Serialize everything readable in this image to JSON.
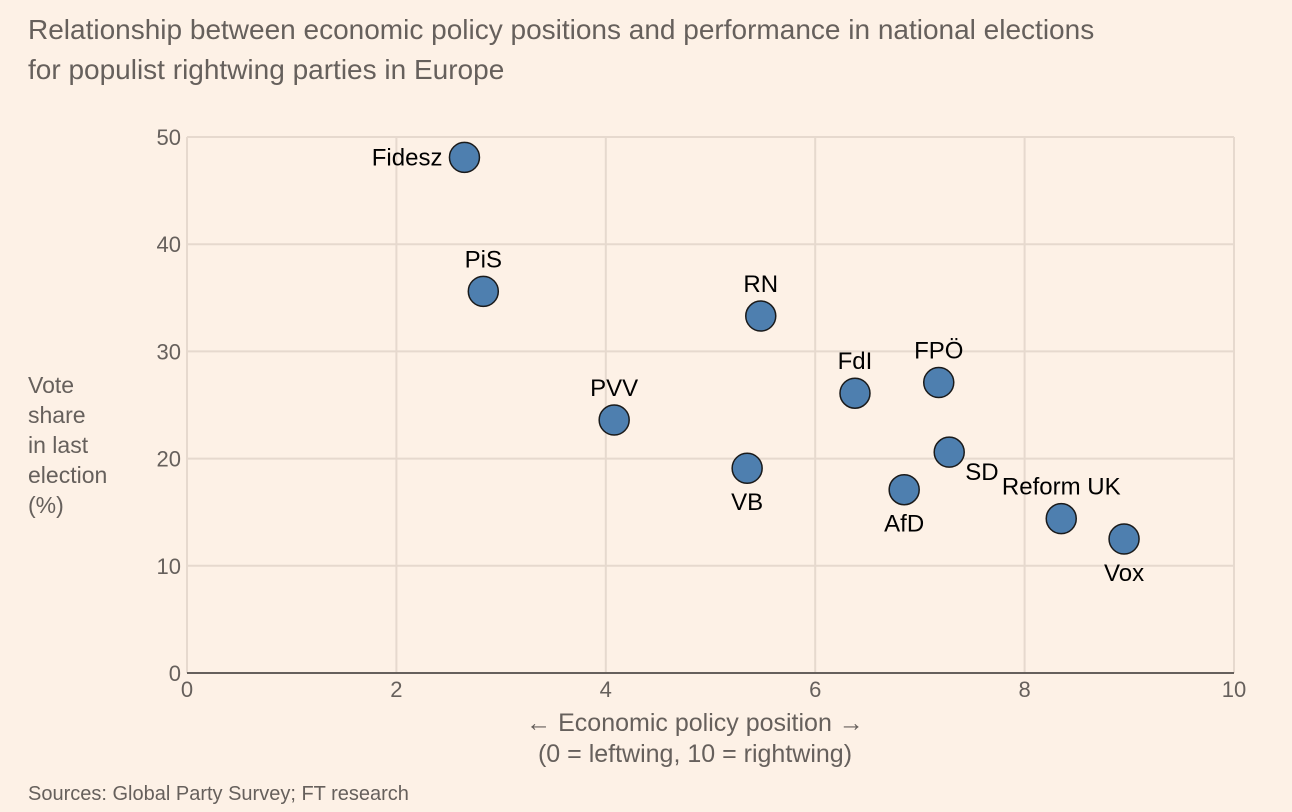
{
  "title_lines": [
    "Relationship between economic policy positions and performance in national elections",
    "for populist rightwing parties in Europe"
  ],
  "ylabel_lines": [
    "Vote",
    "share",
    "in last",
    "election",
    "(%)"
  ],
  "xlabel_lines": [
    "← Economic policy position →",
    "(0 = leftwing, 10 = rightwing)"
  ],
  "source": "Sources: Global Party Survey; FT research",
  "colors": {
    "background": "#FDF1E6",
    "point_fill": "#4E7FAF",
    "point_stroke": "#1A1A1A",
    "grid": "#E6D9CE",
    "axis": "#66605C",
    "text": "#66605C",
    "label": "#000000"
  },
  "chart_data": {
    "type": "scatter",
    "title": "Relationship between economic policy positions and performance in national elections for populist rightwing parties in Europe",
    "xlabel": "← Economic policy position → (0 = leftwing, 10 = rightwing)",
    "ylabel": "Vote share in last election (%)",
    "xlim": [
      0,
      10
    ],
    "ylim": [
      0,
      50
    ],
    "xticks": [
      0,
      2,
      4,
      6,
      8,
      10
    ],
    "yticks": [
      0,
      10,
      20,
      30,
      40,
      50
    ],
    "grid": true,
    "points": [
      {
        "label": "Fidesz",
        "x": 2.65,
        "y": 48.1,
        "label_pos": "left"
      },
      {
        "label": "PiS",
        "x": 2.83,
        "y": 35.6,
        "label_pos": "above"
      },
      {
        "label": "PVV",
        "x": 4.08,
        "y": 23.6,
        "label_pos": "above"
      },
      {
        "label": "VB",
        "x": 5.35,
        "y": 19.1,
        "label_pos": "below"
      },
      {
        "label": "RN",
        "x": 5.48,
        "y": 33.3,
        "label_pos": "above"
      },
      {
        "label": "FdI",
        "x": 6.38,
        "y": 26.1,
        "label_pos": "above"
      },
      {
        "label": "AfD",
        "x": 6.85,
        "y": 17.1,
        "label_pos": "below"
      },
      {
        "label": "FPÖ",
        "x": 7.18,
        "y": 27.1,
        "label_pos": "above"
      },
      {
        "label": "SD",
        "x": 7.28,
        "y": 20.6,
        "label_pos": "below-right"
      },
      {
        "label": "Reform UK",
        "x": 8.35,
        "y": 14.4,
        "label_pos": "above"
      },
      {
        "label": "Vox",
        "x": 8.95,
        "y": 12.5,
        "label_pos": "below"
      }
    ]
  }
}
